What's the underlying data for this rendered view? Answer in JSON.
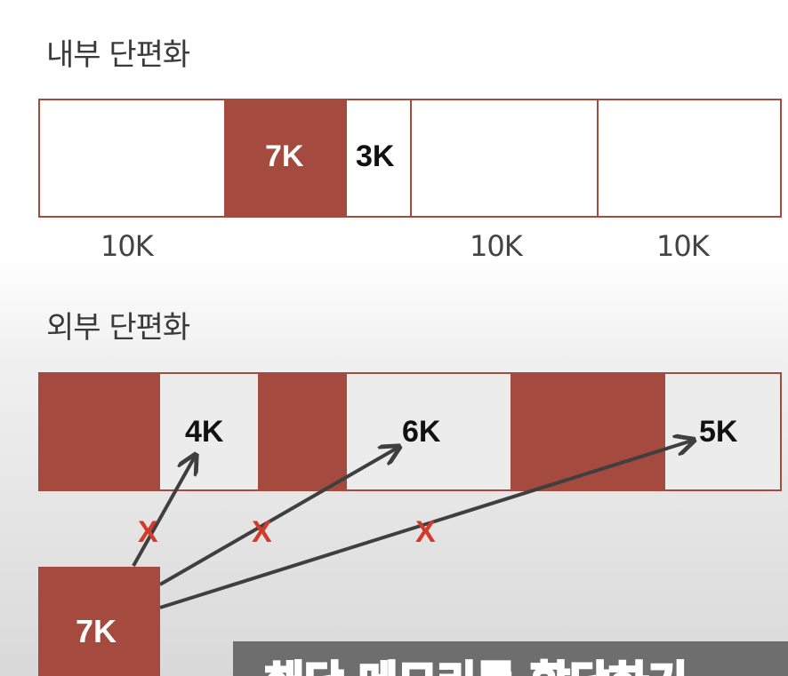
{
  "internal": {
    "title": "내부 단편화",
    "used_label": "7K",
    "leftover_label": "3K",
    "partition_labels": [
      "10K",
      "10K",
      "10K"
    ]
  },
  "external": {
    "title": "외부 단편화",
    "holes": [
      "4K",
      "6K",
      "5K"
    ],
    "process_label": "7K",
    "x_marks": [
      "X",
      "X",
      "X"
    ]
  },
  "caption": {
    "text": "해당 메모리를 할당하기"
  },
  "colors": {
    "used": "#a44a3f",
    "x_mark": "#d23a2a",
    "arrow": "#3f3f3f",
    "hole": "#ececec"
  }
}
